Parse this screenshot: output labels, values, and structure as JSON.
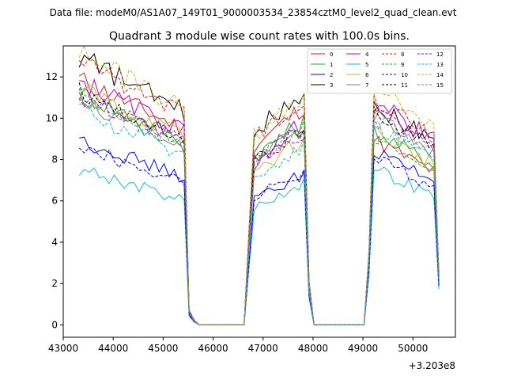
{
  "figure": {
    "suptitle": "Data file: modeM0/AS1A07_149T01_9000003534_23854cztM0_level2_quad_clean.evt"
  },
  "chart_data": {
    "type": "line",
    "title": "Quadrant 3 module wise count rates with 100.0s bins.",
    "xlabel": "",
    "ylabel": "",
    "x_offset_label": "+3.203e8",
    "xlim": [
      43000,
      50850
    ],
    "ylim": [
      -0.6,
      13.5
    ],
    "xticks": [
      43000,
      44000,
      45000,
      46000,
      47000,
      48000,
      49000,
      50000
    ],
    "xtick_labels": [
      "43000",
      "44000",
      "45000",
      "46000",
      "47000",
      "48000",
      "49000",
      "50000"
    ],
    "yticks": [
      0,
      2,
      4,
      6,
      8,
      10,
      12
    ],
    "ytick_labels": [
      "0",
      "2",
      "4",
      "6",
      "8",
      "10",
      "12"
    ],
    "grid": false,
    "legend": {
      "placement": "top-right",
      "columns": 4
    },
    "segments": [
      {
        "start": 43320,
        "end": 45420
      },
      {
        "start": 46750,
        "end": 47850
      },
      {
        "start": 49170,
        "end": 50450
      }
    ],
    "series": [
      {
        "name": "0",
        "color": "#e31a1c",
        "dash": "solid",
        "levels": [
          11.0,
          9.5,
          8.2
        ]
      },
      {
        "name": "1",
        "color": "#2ca02c",
        "dash": "solid",
        "levels": [
          10.4,
          8.9,
          8.6
        ]
      },
      {
        "name": "2",
        "color": "#0000ff",
        "dash": "solid",
        "levels": [
          8.3,
          6.6,
          7.7
        ]
      },
      {
        "name": "3",
        "color": "#000000",
        "dash": "solid",
        "levels": [
          12.0,
          10.2,
          9.8
        ]
      },
      {
        "name": "4",
        "color": "#c000c0",
        "dash": "solid",
        "levels": [
          10.9,
          8.8,
          9.9
        ]
      },
      {
        "name": "5",
        "color": "#17becf",
        "dash": "solid",
        "levels": [
          7.0,
          6.2,
          6.9
        ]
      },
      {
        "name": "6",
        "color": "#bcbd22",
        "dash": "solid",
        "levels": [
          10.6,
          8.1,
          8.6
        ]
      },
      {
        "name": "7",
        "color": "#7f7f7f",
        "dash": "solid",
        "levels": [
          10.0,
          8.6,
          9.3
        ]
      },
      {
        "name": "8",
        "color": "#e31a1c",
        "dash": "dashed",
        "levels": [
          11.9,
          9.9,
          10.1
        ]
      },
      {
        "name": "9",
        "color": "#2ca02c",
        "dash": "dashed",
        "levels": [
          10.2,
          8.7,
          8.4
        ]
      },
      {
        "name": "10",
        "color": "#0000ff",
        "dash": "dashed",
        "levels": [
          8.0,
          6.7,
          7.4
        ]
      },
      {
        "name": "11",
        "color": "#000000",
        "dash": "dashed",
        "levels": [
          10.5,
          8.6,
          9.4
        ]
      },
      {
        "name": "12",
        "color": "#c000c0",
        "dash": "dashed",
        "levels": [
          10.3,
          8.4,
          9.6
        ]
      },
      {
        "name": "13",
        "color": "#17becf",
        "dash": "dashed",
        "levels": [
          9.6,
          7.8,
          8.9
        ]
      },
      {
        "name": "14",
        "color": "#bcbd22",
        "dash": "dashed",
        "levels": [
          12.2,
          10.0,
          10.6
        ]
      },
      {
        "name": "15",
        "color": "#7f7f7f",
        "dash": "dashed",
        "levels": [
          10.1,
          8.5,
          9.2
        ]
      }
    ]
  }
}
